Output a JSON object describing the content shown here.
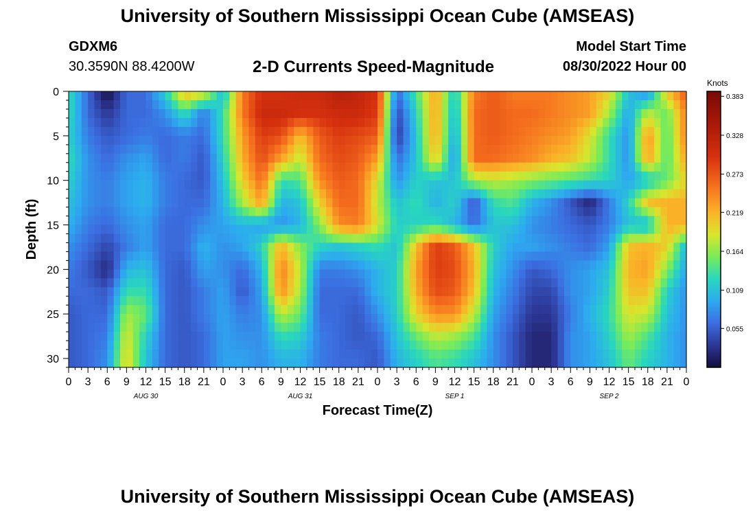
{
  "header": {
    "title": "University of Southern Mississippi Ocean Cube (AMSEAS)",
    "station": "GDXM6",
    "coords": "30.3590N  88.4200W",
    "plot_title": "2-D Currents Speed-Magnitude",
    "start_label": "Model Start Time",
    "start_value": "08/30/2022 Hour 00"
  },
  "footer": {
    "title": "University of Southern Mississippi Ocean Cube (AMSEAS)"
  },
  "chart_data": {
    "type": "heatmap",
    "title": "2-D Currents Speed-Magnitude",
    "xlabel": "Forecast Time(Z)",
    "ylabel": "Depth (ft)",
    "xlim": [
      0,
      96
    ],
    "ylim": [
      0,
      31
    ],
    "x_tick_values": [
      0,
      3,
      6,
      9,
      12,
      15,
      18,
      21,
      24,
      27,
      30,
      33,
      36,
      39,
      42,
      45,
      48,
      51,
      54,
      57,
      60,
      63,
      66,
      69,
      72,
      75,
      78,
      81,
      84,
      87,
      90,
      93,
      96
    ],
    "x_tick_labels": [
      "0",
      "3",
      "6",
      "9",
      "12",
      "15",
      "18",
      "21",
      "0",
      "3",
      "6",
      "9",
      "12",
      "15",
      "18",
      "21",
      "0",
      "3",
      "6",
      "9",
      "12",
      "15",
      "18",
      "21",
      "0",
      "3",
      "6",
      "9",
      "12",
      "15",
      "18",
      "21",
      "0"
    ],
    "y_ticks": [
      0,
      5,
      10,
      15,
      20,
      25,
      30
    ],
    "day_labels": [
      {
        "text": "AUG 30",
        "x": 12
      },
      {
        "text": "AUG 31",
        "x": 36
      },
      {
        "text": "SEP 1",
        "x": 60
      },
      {
        "text": "SEP 2",
        "x": 84
      }
    ],
    "colorbar": {
      "title": "Knots",
      "min": 0.0,
      "max": 0.39,
      "ticks": [
        0.055,
        0.109,
        0.164,
        0.219,
        0.273,
        0.328,
        0.383
      ],
      "tick_labels": [
        "0.055",
        "0.109",
        "0.164",
        "0.219",
        "0.273",
        "0.328",
        "0.383"
      ]
    },
    "grid": {
      "times": [
        0,
        3,
        6,
        9,
        12,
        15,
        18,
        21,
        24,
        27,
        30,
        33,
        36,
        39,
        42,
        45,
        48,
        51,
        54,
        57,
        60,
        63,
        66,
        69,
        72,
        75,
        78,
        81,
        84,
        87,
        90,
        93,
        96
      ],
      "depths": [
        0,
        2.5,
        5,
        7.5,
        10,
        12.5,
        15,
        17.5,
        20,
        22.5,
        25,
        27.5,
        30
      ],
      "values": [
        [
          0.13,
          0.06,
          0.0,
          0.06,
          0.06,
          0.12,
          0.22,
          0.2,
          0.1,
          0.25,
          0.3,
          0.3,
          0.31,
          0.31,
          0.33,
          0.32,
          0.3,
          0.06,
          0.14,
          0.23,
          0.11,
          0.25,
          0.27,
          0.25,
          0.25,
          0.25,
          0.24,
          0.23,
          0.2,
          0.11,
          0.07,
          0.21,
          0.27
        ],
        [
          0.13,
          0.06,
          0.03,
          0.06,
          0.06,
          0.08,
          0.13,
          0.07,
          0.13,
          0.25,
          0.31,
          0.31,
          0.3,
          0.3,
          0.31,
          0.31,
          0.29,
          0.04,
          0.12,
          0.23,
          0.1,
          0.26,
          0.27,
          0.26,
          0.26,
          0.25,
          0.24,
          0.23,
          0.17,
          0.09,
          0.18,
          0.15,
          0.25
        ],
        [
          0.12,
          0.07,
          0.05,
          0.06,
          0.07,
          0.06,
          0.07,
          0.06,
          0.13,
          0.23,
          0.29,
          0.28,
          0.21,
          0.27,
          0.29,
          0.28,
          0.27,
          0.03,
          0.11,
          0.23,
          0.09,
          0.26,
          0.27,
          0.26,
          0.25,
          0.24,
          0.23,
          0.19,
          0.13,
          0.08,
          0.24,
          0.14,
          0.25
        ],
        [
          0.13,
          0.08,
          0.06,
          0.08,
          0.09,
          0.06,
          0.07,
          0.05,
          0.12,
          0.22,
          0.28,
          0.23,
          0.18,
          0.26,
          0.28,
          0.27,
          0.23,
          0.06,
          0.11,
          0.21,
          0.08,
          0.26,
          0.26,
          0.25,
          0.24,
          0.22,
          0.21,
          0.18,
          0.13,
          0.08,
          0.23,
          0.14,
          0.23
        ],
        [
          0.12,
          0.08,
          0.07,
          0.09,
          0.1,
          0.07,
          0.06,
          0.05,
          0.11,
          0.2,
          0.26,
          0.13,
          0.14,
          0.24,
          0.27,
          0.26,
          0.19,
          0.08,
          0.12,
          0.11,
          0.11,
          0.17,
          0.18,
          0.17,
          0.16,
          0.15,
          0.14,
          0.13,
          0.12,
          0.09,
          0.11,
          0.15,
          0.2
        ],
        [
          0.11,
          0.08,
          0.07,
          0.09,
          0.1,
          0.07,
          0.06,
          0.06,
          0.1,
          0.17,
          0.23,
          0.1,
          0.11,
          0.2,
          0.26,
          0.26,
          0.18,
          0.11,
          0.13,
          0.1,
          0.12,
          0.05,
          0.13,
          0.14,
          0.1,
          0.08,
          0.05,
          0.02,
          0.07,
          0.12,
          0.21,
          0.22,
          0.22
        ],
        [
          0.1,
          0.07,
          0.06,
          0.08,
          0.09,
          0.06,
          0.06,
          0.08,
          0.09,
          0.1,
          0.09,
          0.08,
          0.1,
          0.16,
          0.24,
          0.25,
          0.19,
          0.12,
          0.12,
          0.13,
          0.1,
          0.06,
          0.11,
          0.11,
          0.08,
          0.07,
          0.06,
          0.05,
          0.07,
          0.11,
          0.1,
          0.22,
          0.22
        ],
        [
          0.08,
          0.06,
          0.04,
          0.07,
          0.09,
          0.06,
          0.06,
          0.1,
          0.08,
          0.09,
          0.12,
          0.22,
          0.16,
          0.12,
          0.11,
          0.12,
          0.13,
          0.11,
          0.21,
          0.29,
          0.27,
          0.21,
          0.12,
          0.09,
          0.09,
          0.08,
          0.07,
          0.06,
          0.09,
          0.21,
          0.22,
          0.2,
          0.1
        ],
        [
          0.07,
          0.05,
          0.02,
          0.1,
          0.11,
          0.06,
          0.05,
          0.09,
          0.08,
          0.06,
          0.1,
          0.25,
          0.18,
          0.07,
          0.07,
          0.08,
          0.1,
          0.12,
          0.23,
          0.29,
          0.28,
          0.22,
          0.11,
          0.08,
          0.05,
          0.06,
          0.08,
          0.09,
          0.11,
          0.22,
          0.23,
          0.16,
          0.09
        ],
        [
          0.06,
          0.06,
          0.05,
          0.13,
          0.13,
          0.06,
          0.05,
          0.07,
          0.09,
          0.05,
          0.09,
          0.24,
          0.17,
          0.06,
          0.06,
          0.06,
          0.1,
          0.12,
          0.22,
          0.28,
          0.27,
          0.21,
          0.1,
          0.07,
          0.04,
          0.04,
          0.08,
          0.09,
          0.12,
          0.21,
          0.21,
          0.12,
          0.08
        ],
        [
          0.05,
          0.06,
          0.06,
          0.17,
          0.15,
          0.06,
          0.05,
          0.07,
          0.09,
          0.07,
          0.08,
          0.18,
          0.15,
          0.06,
          0.06,
          0.05,
          0.08,
          0.12,
          0.2,
          0.24,
          0.24,
          0.18,
          0.09,
          0.06,
          0.03,
          0.03,
          0.07,
          0.1,
          0.13,
          0.19,
          0.18,
          0.11,
          0.08
        ],
        [
          0.05,
          0.06,
          0.07,
          0.19,
          0.12,
          0.06,
          0.05,
          0.06,
          0.09,
          0.08,
          0.08,
          0.13,
          0.12,
          0.07,
          0.06,
          0.05,
          0.06,
          0.11,
          0.15,
          0.18,
          0.17,
          0.14,
          0.08,
          0.05,
          0.02,
          0.02,
          0.08,
          0.09,
          0.12,
          0.17,
          0.14,
          0.1,
          0.08
        ],
        [
          0.05,
          0.06,
          0.08,
          0.2,
          0.11,
          0.06,
          0.05,
          0.06,
          0.09,
          0.09,
          0.08,
          0.1,
          0.1,
          0.07,
          0.06,
          0.06,
          0.05,
          0.1,
          0.12,
          0.14,
          0.13,
          0.11,
          0.08,
          0.05,
          0.02,
          0.02,
          0.08,
          0.09,
          0.11,
          0.15,
          0.12,
          0.1,
          0.08
        ]
      ]
    }
  }
}
